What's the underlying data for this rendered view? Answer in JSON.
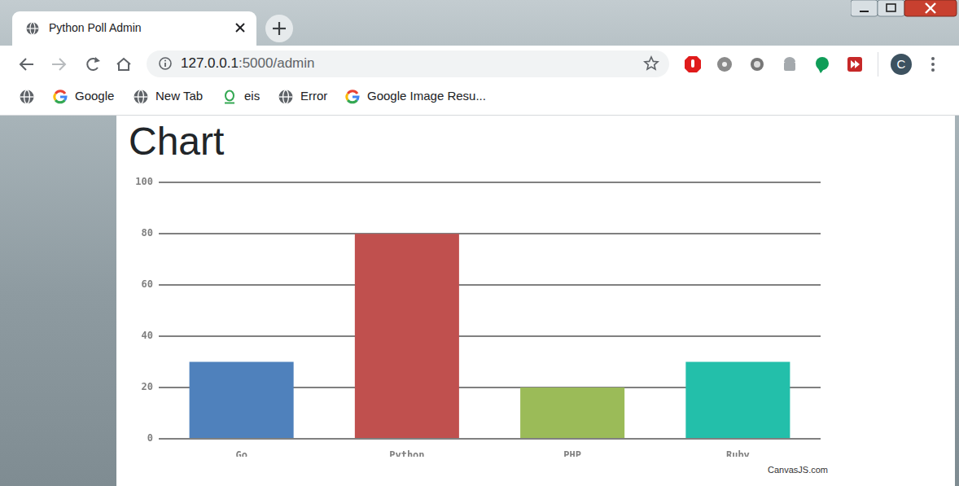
{
  "browser": {
    "tab_title": "Python Poll Admin",
    "url": "127.0.0.1:5000/admin",
    "bookmarks": [
      "Google",
      "New Tab",
      "eis",
      "Error",
      "Google Image Resu..."
    ],
    "profile_initial": "C"
  },
  "chart_data": {
    "type": "bar",
    "title": "Chart",
    "categories": [
      "Go",
      "Python",
      "PHP",
      "Ruby"
    ],
    "values": [
      30,
      80,
      20,
      30
    ],
    "colors": [
      "#4f81bc",
      "#c0504e",
      "#9bbb58",
      "#23bfaa"
    ],
    "ylim": [
      0,
      100
    ],
    "yticks": [
      0,
      20,
      40,
      60,
      80,
      100
    ],
    "grid": true
  },
  "page": {
    "credit": "CanvasJS.com"
  }
}
